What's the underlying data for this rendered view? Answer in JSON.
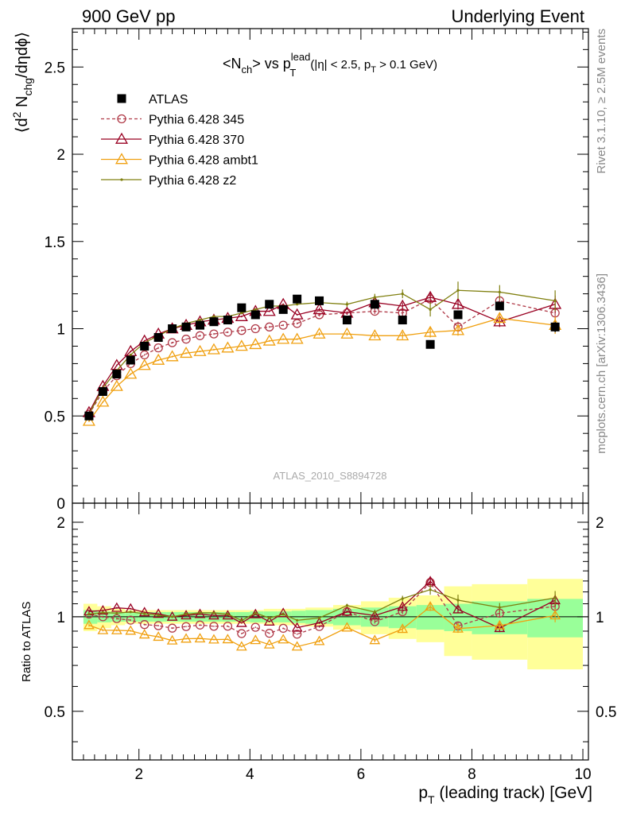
{
  "header": {
    "left": "900 GeV pp",
    "right": "Underlying Event"
  },
  "side_labels": {
    "rivet": "Rivet 3.1.10, ≥ 2.5M events",
    "mcplots": "mcplots.cern.ch [arXiv:1306.3436]"
  },
  "chart_data": {
    "type": "scatter",
    "title": {
      "prefix": "<N",
      "prefix_sub": "ch",
      "mid": "> vs p",
      "sup": "lead",
      "sub": "T",
      "suffix_a": " (|η| < 2.5, p",
      "suffix_sub": "T",
      "suffix_b": " > 0.1 GeV)"
    },
    "ylabel": {
      "p1": "⟨d",
      "sup": "2",
      "p2": " N",
      "sub": "chg",
      "p3": "/dηdϕ⟩"
    },
    "xlabel": {
      "p1": "p",
      "sub": "T",
      "p2": " (leading track) [GeV]"
    },
    "ratio_ylabel": "Ratio to ATLAS",
    "watermark": "ATLAS_2010_S8894728",
    "xlim": [
      0.8,
      10.1
    ],
    "ylim": [
      0,
      2.72
    ],
    "ratio_ylim": [
      0.35,
      2.3
    ],
    "xticks": [
      2,
      4,
      6,
      8,
      10
    ],
    "yticks": [
      0,
      0.5,
      1,
      1.5,
      2,
      2.5
    ],
    "yticklabels": [
      "0",
      "0.5",
      "1",
      "1.5",
      "2",
      "2.5"
    ],
    "ratio_yticks": [
      0.5,
      1,
      2
    ],
    "ratio_yticklabels": [
      "0.5",
      "1",
      "2"
    ],
    "x": [
      1.1,
      1.35,
      1.6,
      1.85,
      2.1,
      2.35,
      2.6,
      2.85,
      3.1,
      3.35,
      3.6,
      3.85,
      4.1,
      4.35,
      4.6,
      4.85,
      5.25,
      5.75,
      6.25,
      6.75,
      7.25,
      7.75,
      8.5,
      9.5
    ],
    "ratio_bands": {
      "edges": [
        1.0,
        1.25,
        1.5,
        1.75,
        2.0,
        2.25,
        2.5,
        2.75,
        3.0,
        3.25,
        3.5,
        3.75,
        4.0,
        4.25,
        4.5,
        4.75,
        5.0,
        5.5,
        6.0,
        6.5,
        7.0,
        7.5,
        8.0,
        9.0,
        10.0
      ],
      "inner": [
        0.05,
        0.04,
        0.035,
        0.035,
        0.035,
        0.035,
        0.035,
        0.035,
        0.035,
        0.035,
        0.035,
        0.035,
        0.04,
        0.04,
        0.04,
        0.045,
        0.05,
        0.06,
        0.07,
        0.08,
        0.09,
        0.1,
        0.12,
        0.14
      ],
      "outer": [
        0.1,
        0.08,
        0.06,
        0.05,
        0.05,
        0.05,
        0.05,
        0.05,
        0.05,
        0.05,
        0.05,
        0.05,
        0.05,
        0.06,
        0.06,
        0.06,
        0.07,
        0.09,
        0.12,
        0.15,
        0.17,
        0.25,
        0.27,
        0.32
      ]
    },
    "legend_position": "top-left",
    "series": [
      {
        "name": "ATLAS",
        "color": "#000000",
        "marker": "square",
        "line": "none",
        "values": [
          0.5,
          0.64,
          0.74,
          0.82,
          0.9,
          0.95,
          1.0,
          1.01,
          1.02,
          1.04,
          1.05,
          1.12,
          1.08,
          1.14,
          1.11,
          1.17,
          1.16,
          1.05,
          1.14,
          1.05,
          0.91,
          1.08,
          1.13,
          1.01
        ],
        "errors": [
          0.01,
          0.01,
          0.01,
          0.01,
          0.01,
          0.01,
          0.01,
          0.01,
          0.01,
          0.01,
          0.01,
          0.01,
          0.01,
          0.01,
          0.01,
          0.01,
          0.01,
          0.01,
          0.01,
          0.02,
          0.02,
          0.02,
          0.02,
          0.03
        ]
      },
      {
        "name": "Pythia 6.428 345",
        "color": "#b03a48",
        "marker": "circle",
        "line": "dashed",
        "values": [
          0.51,
          0.64,
          0.73,
          0.8,
          0.85,
          0.89,
          0.92,
          0.94,
          0.96,
          0.97,
          0.98,
          0.99,
          1.0,
          1.01,
          1.02,
          1.03,
          1.08,
          1.09,
          1.1,
          1.09,
          1.17,
          1.01,
          1.16,
          1.09
        ],
        "errors": [
          0.005,
          0.005,
          0.005,
          0.005,
          0.005,
          0.005,
          0.005,
          0.005,
          0.005,
          0.005,
          0.005,
          0.005,
          0.005,
          0.005,
          0.005,
          0.005,
          0.01,
          0.01,
          0.015,
          0.02,
          0.03,
          0.03,
          0.03,
          0.05
        ]
      },
      {
        "name": "Pythia 6.428 370",
        "color": "#990022",
        "marker": "triangle",
        "line": "solid",
        "values": [
          0.52,
          0.67,
          0.79,
          0.87,
          0.93,
          0.97,
          1.0,
          1.02,
          1.04,
          1.05,
          1.06,
          1.07,
          1.1,
          1.1,
          1.14,
          1.08,
          1.11,
          1.09,
          1.15,
          1.13,
          1.18,
          1.14,
          1.04,
          1.14
        ],
        "errors": [
          0.005,
          0.005,
          0.005,
          0.005,
          0.005,
          0.005,
          0.005,
          0.005,
          0.005,
          0.005,
          0.005,
          0.005,
          0.005,
          0.005,
          0.005,
          0.005,
          0.01,
          0.01,
          0.015,
          0.02,
          0.03,
          0.03,
          0.03,
          0.05
        ]
      },
      {
        "name": "Pythia 6.428 ambt1",
        "color": "#f0a010",
        "marker": "triangle",
        "line": "solid",
        "values": [
          0.47,
          0.58,
          0.67,
          0.74,
          0.79,
          0.82,
          0.84,
          0.86,
          0.87,
          0.88,
          0.89,
          0.9,
          0.91,
          0.93,
          0.94,
          0.94,
          0.97,
          0.97,
          0.96,
          0.96,
          0.98,
          0.99,
          1.06,
          1.02
        ],
        "errors": [
          0.005,
          0.005,
          0.005,
          0.005,
          0.005,
          0.005,
          0.005,
          0.005,
          0.005,
          0.005,
          0.005,
          0.005,
          0.005,
          0.005,
          0.005,
          0.005,
          0.01,
          0.01,
          0.015,
          0.02,
          0.03,
          0.03,
          0.03,
          0.05
        ]
      },
      {
        "name": "Pythia 6.428 z2",
        "color": "#808010",
        "marker": "dot",
        "line": "solid",
        "values": [
          0.51,
          0.66,
          0.76,
          0.85,
          0.92,
          0.96,
          1.0,
          1.03,
          1.05,
          1.07,
          1.07,
          1.09,
          1.11,
          1.13,
          1.13,
          1.14,
          1.15,
          1.14,
          1.18,
          1.2,
          1.11,
          1.22,
          1.21,
          1.16
        ],
        "errors": [
          0.005,
          0.005,
          0.005,
          0.005,
          0.005,
          0.005,
          0.005,
          0.005,
          0.005,
          0.005,
          0.005,
          0.005,
          0.005,
          0.005,
          0.005,
          0.005,
          0.01,
          0.015,
          0.02,
          0.025,
          0.04,
          0.05,
          0.04,
          0.06
        ]
      }
    ]
  }
}
